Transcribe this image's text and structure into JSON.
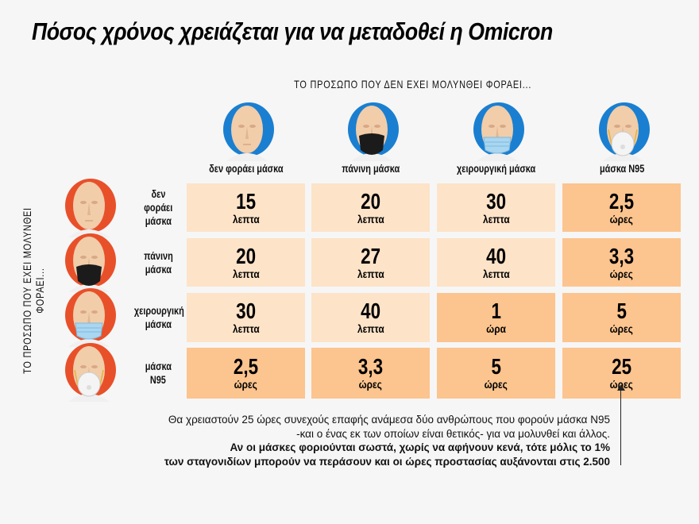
{
  "title": "Πόσος χρόνος χρειάζεται για να μεταδοθεί η Omicron",
  "colors": {
    "light_cell": "#fde3c8",
    "dark_cell": "#fcc48e",
    "column_icon_bg": "#1a7fd0",
    "row_icon_bg": "#e8502a"
  },
  "chart_data": {
    "type": "table",
    "column_header": "ΤΟ ΠΡΟΣΩΠΟ ΠΟΥ ΔΕΝ ΕΧΕΙ ΜΟΛΥΝΘΕΙ ΦΟΡΑΕΙ...",
    "row_header": "ΤΟ ΠΡΟΣΩΠΟ ΠΟΥ ΕΧΕΙ ΜΟΛΥΝΘΕΙ ΦΟΡΑΕΙ...",
    "columns": [
      {
        "label": "δεν φοράει μάσκα",
        "icon": "face-no-mask-icon"
      },
      {
        "label": "πάνινη μάσκα",
        "icon": "face-cloth-mask-icon"
      },
      {
        "label": "χειρουργική μάσκα",
        "icon": "face-surgical-mask-icon"
      },
      {
        "label": "μάσκα Ν95",
        "icon": "face-n95-mask-icon"
      }
    ],
    "rows": [
      {
        "label_lines": [
          "δεν",
          "φοράει",
          "μάσκα"
        ],
        "icon": "face-no-mask-icon",
        "cells": [
          {
            "value": "15",
            "unit": "λεπτα",
            "dark": false
          },
          {
            "value": "20",
            "unit": "λεπτα",
            "dark": false
          },
          {
            "value": "30",
            "unit": "λεπτα",
            "dark": false
          },
          {
            "value": "2,5",
            "unit": "ώρες",
            "dark": true
          }
        ]
      },
      {
        "label_lines": [
          "πάνινη",
          "μάσκα"
        ],
        "icon": "face-cloth-mask-icon",
        "cells": [
          {
            "value": "20",
            "unit": "λεπτα",
            "dark": false
          },
          {
            "value": "27",
            "unit": "λεπτα",
            "dark": false
          },
          {
            "value": "40",
            "unit": "λεπτα",
            "dark": false
          },
          {
            "value": "3,3",
            "unit": "ώρες",
            "dark": true
          }
        ]
      },
      {
        "label_lines": [
          "χειρουργική",
          "μάσκα"
        ],
        "icon": "face-surgical-mask-icon",
        "cells": [
          {
            "value": "30",
            "unit": "λεπτα",
            "dark": false
          },
          {
            "value": "40",
            "unit": "λεπτα",
            "dark": false
          },
          {
            "value": "1",
            "unit": "ώρα",
            "dark": true
          },
          {
            "value": "5",
            "unit": "ώρες",
            "dark": true
          }
        ]
      },
      {
        "label_lines": [
          "μάσκα",
          "Ν95"
        ],
        "icon": "face-n95-mask-icon",
        "cells": [
          {
            "value": "2,5",
            "unit": "ώρες",
            "dark": true
          },
          {
            "value": "3,3",
            "unit": "ώρες",
            "dark": true
          },
          {
            "value": "5",
            "unit": "ώρες",
            "dark": true
          },
          {
            "value": "25",
            "unit": "ώρες",
            "dark": true
          }
        ]
      }
    ]
  },
  "note": {
    "line1": "Θα χρειαστούν 25 ώρες συνεχούς επαφής ανάμεσα δύο ανθρώπους που φορούν μάσκα Ν95",
    "line2": "-και ο ένας εκ των οποίων είναι θετικός- για να μολυνθεί και άλλος.",
    "line3": "Αν οι μάσκες φοριούνται σωστά, χωρίς να αφήνουν κενά, τότε μόλις το 1%",
    "line4": "των σταγονιδίων μπορούν να περάσουν και οι ώρες προστασίας αυξάνονται στις 2.500"
  }
}
